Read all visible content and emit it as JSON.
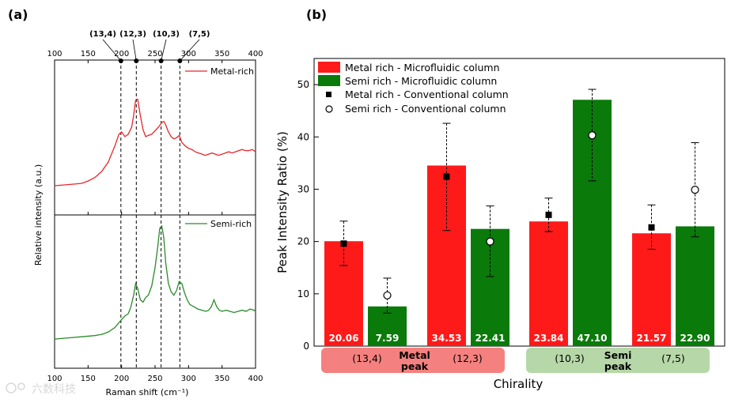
{
  "chart_data": [
    {
      "panel": "(a)",
      "type": "line",
      "xlabel": "Raman shift (cm⁻¹)",
      "ylabel": "Relative intensity (a.u.)",
      "xlim": [
        100,
        400
      ],
      "xticks": [
        "100",
        "150",
        "200",
        "250",
        "300",
        "350",
        "400"
      ],
      "chirality_markers": [
        {
          "label": "(13,4)",
          "x": 199
        },
        {
          "label": "(12,3)",
          "x": 222
        },
        {
          "label": "(10,3)",
          "x": 259
        },
        {
          "label": "(7,5)",
          "x": 287
        }
      ],
      "series": [
        {
          "name": "Metal-rich",
          "color": "#e8262a",
          "x": [
            100,
            120,
            140,
            150,
            160,
            170,
            180,
            190,
            196,
            200,
            205,
            210,
            215,
            218,
            221,
            224,
            228,
            232,
            236,
            240,
            245,
            250,
            255,
            260,
            263,
            266,
            270,
            274,
            278,
            282,
            286,
            290,
            295,
            300,
            305,
            310,
            315,
            320,
            325,
            330,
            335,
            340,
            345,
            350,
            355,
            360,
            365,
            370,
            375,
            380,
            385,
            390,
            395,
            400
          ],
          "y": [
            0.02,
            0.03,
            0.04,
            0.06,
            0.09,
            0.14,
            0.22,
            0.36,
            0.46,
            0.48,
            0.44,
            0.46,
            0.52,
            0.62,
            0.75,
            0.76,
            0.62,
            0.5,
            0.44,
            0.45,
            0.46,
            0.49,
            0.52,
            0.56,
            0.57,
            0.54,
            0.48,
            0.44,
            0.42,
            0.43,
            0.45,
            0.39,
            0.36,
            0.34,
            0.33,
            0.31,
            0.3,
            0.29,
            0.28,
            0.29,
            0.3,
            0.29,
            0.28,
            0.29,
            0.3,
            0.31,
            0.3,
            0.31,
            0.32,
            0.33,
            0.32,
            0.32,
            0.33,
            0.31
          ]
        },
        {
          "name": "Semi-rich",
          "color": "#2b8a2b",
          "x": [
            100,
            120,
            140,
            160,
            170,
            180,
            190,
            200,
            205,
            210,
            214,
            218,
            221,
            224,
            228,
            232,
            236,
            240,
            245,
            250,
            254,
            257,
            260,
            263,
            266,
            270,
            274,
            278,
            282,
            286,
            290,
            294,
            298,
            302,
            308,
            314,
            320,
            326,
            330,
            334,
            338,
            342,
            346,
            350,
            356,
            362,
            368,
            374,
            380,
            386,
            392,
            398,
            400
          ],
          "y": [
            0.02,
            0.03,
            0.04,
            0.05,
            0.06,
            0.08,
            0.12,
            0.19,
            0.22,
            0.24,
            0.3,
            0.4,
            0.5,
            0.46,
            0.36,
            0.34,
            0.38,
            0.4,
            0.48,
            0.64,
            0.82,
            0.98,
            1.0,
            0.9,
            0.68,
            0.5,
            0.43,
            0.4,
            0.44,
            0.52,
            0.5,
            0.42,
            0.36,
            0.32,
            0.3,
            0.28,
            0.27,
            0.26,
            0.27,
            0.3,
            0.36,
            0.3,
            0.27,
            0.26,
            0.27,
            0.26,
            0.25,
            0.26,
            0.27,
            0.26,
            0.28,
            0.27,
            0.26
          ]
        }
      ]
    },
    {
      "panel": "(b)",
      "type": "bar",
      "xlabel": "Chirality",
      "ylabel": "Peak Intensity Ratio (%)",
      "ylim": [
        0,
        55
      ],
      "yticks": [
        0,
        10,
        20,
        30,
        40,
        50
      ],
      "categories": [
        "(13,4)",
        "(12,3)",
        "(10,3)",
        "(7,5)"
      ],
      "series": [
        {
          "name": "Metal rich - Microfluidic column",
          "color": "#ff1a1a",
          "values": [
            20.06,
            34.53,
            23.84,
            21.57
          ],
          "value_labels": [
            "20.06",
            "34.53",
            "23.84",
            "21.57"
          ],
          "conventional": [
            19.6,
            32.4,
            25.1,
            22.7
          ],
          "err_high": [
            23.9,
            42.6,
            28.3,
            27.0
          ],
          "err_low": [
            15.4,
            22.1,
            21.9,
            18.5
          ]
        },
        {
          "name": "Semi rich - Microfluidic column",
          "color": "#0a7a0a",
          "values": [
            7.59,
            22.41,
            47.1,
            22.9
          ],
          "value_labels": [
            "7.59",
            "22.41",
            "47.10",
            "22.90"
          ],
          "conventional": [
            9.7,
            20.0,
            40.3,
            29.9
          ],
          "err_high": [
            13.0,
            26.8,
            49.1,
            38.9
          ],
          "err_low": [
            6.3,
            13.3,
            31.6,
            20.9
          ]
        }
      ],
      "legend": [
        {
          "label": "Metal rich - Microfluidic column",
          "marker": "red-box"
        },
        {
          "label": "Semi rich - Microfluidic column",
          "marker": "green-box"
        },
        {
          "label": "Metal rich - Conventional column",
          "marker": "filled-square"
        },
        {
          "label": "Semi rich - Conventional column",
          "marker": "open-circle"
        }
      ],
      "groups": [
        {
          "name_line1": "Metal",
          "name_line2": "peak",
          "color": "#f4817f"
        },
        {
          "name_line1": "Semi",
          "name_line2": "peak",
          "color": "#b6d7a8"
        }
      ]
    }
  ],
  "watermark": "六数科技"
}
